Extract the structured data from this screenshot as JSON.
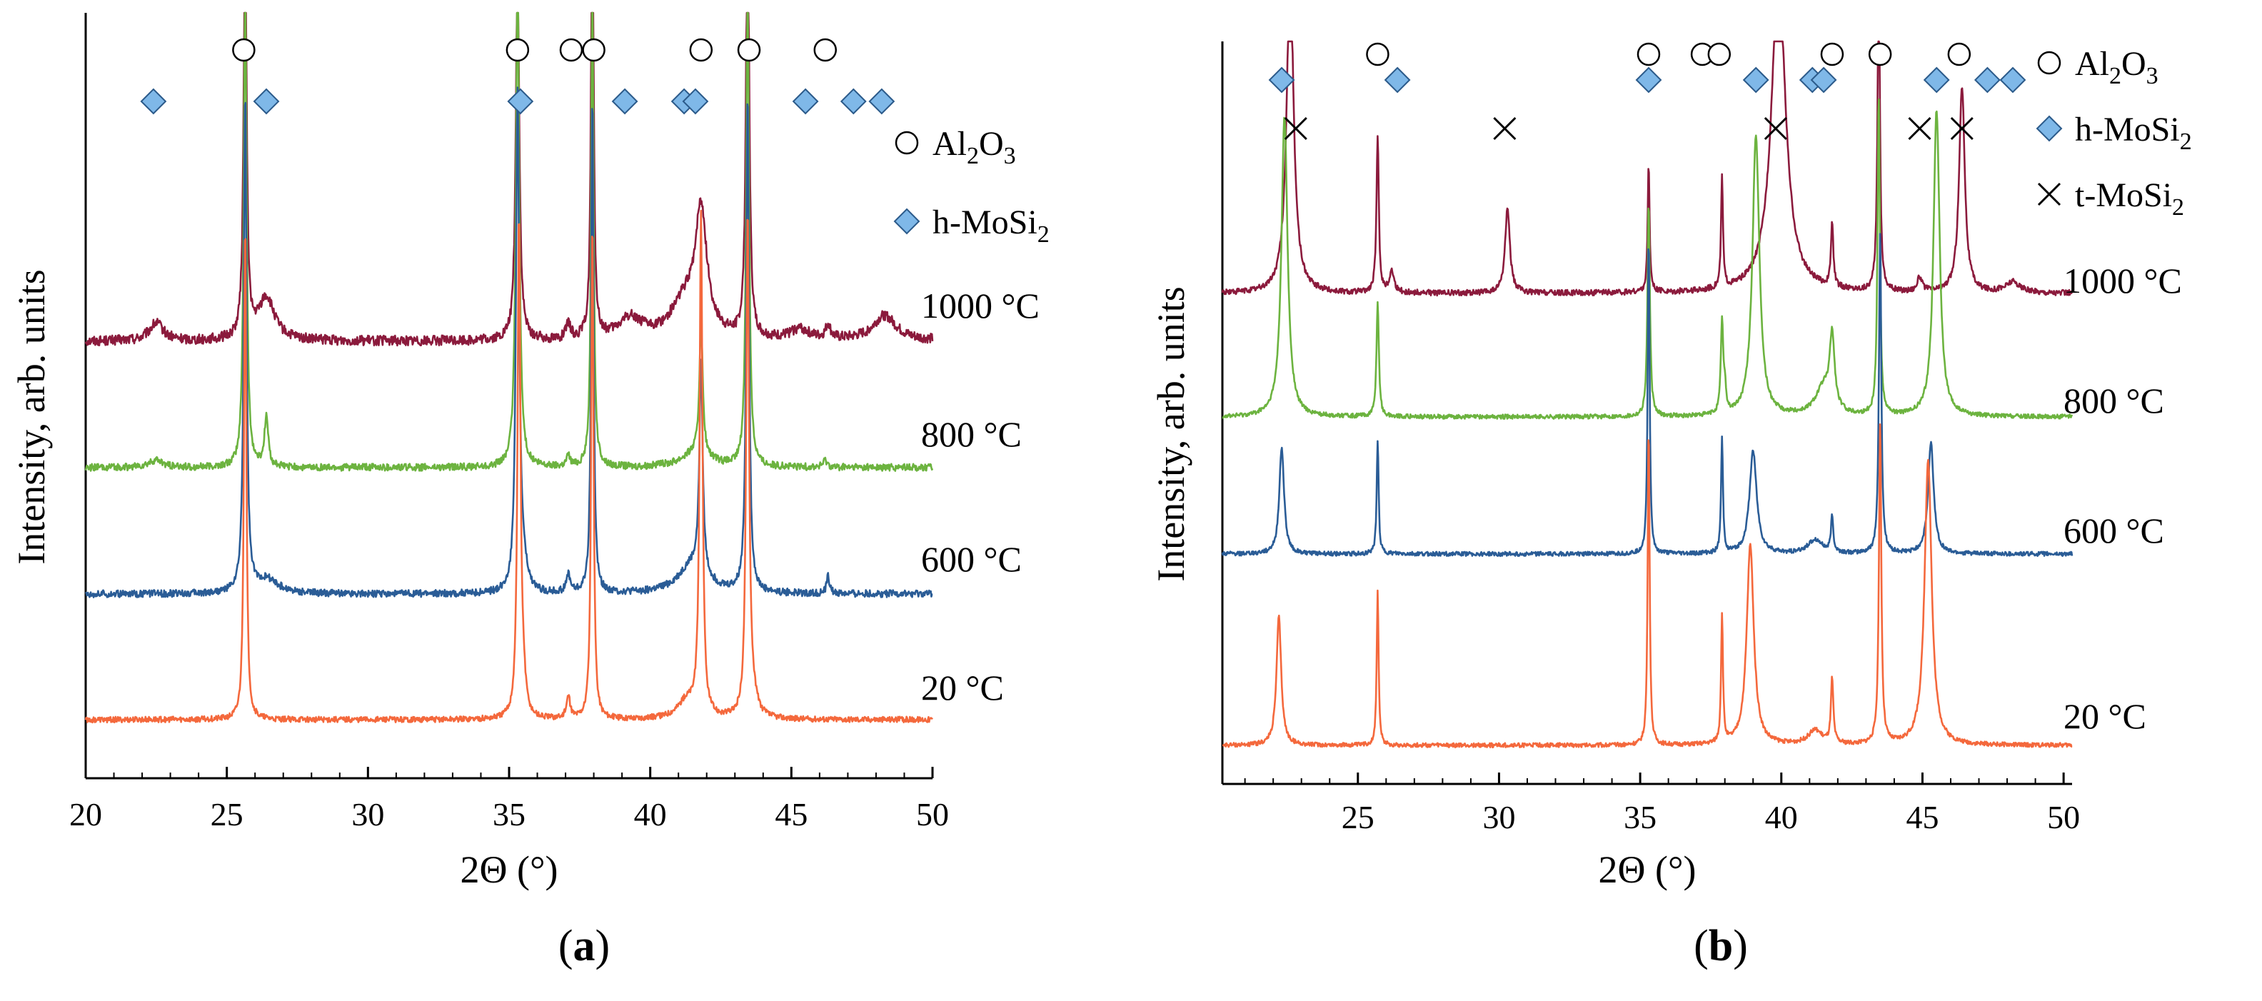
{
  "chart_data": [
    {
      "type": "line",
      "panel_label": "a",
      "xlabel": "2Θ (°)",
      "ylabel": "Intensity, arb. units",
      "xlim": [
        20,
        50
      ],
      "xticks": [
        20,
        25,
        30,
        35,
        40,
        45,
        50
      ],
      "ylim": [
        0,
        10
      ],
      "legend": [
        {
          "marker": "circle",
          "label": "Al",
          "sub1": "2",
          "mid": "O",
          "sub2": "3"
        },
        {
          "marker": "diamond",
          "label": "h-MoSi",
          "sub1": "2",
          "mid": "",
          "sub2": ""
        }
      ],
      "markers": {
        "circle": [
          25.6,
          35.3,
          37.2,
          38.0,
          41.8,
          43.5,
          46.2
        ],
        "diamond": [
          22.4,
          26.4,
          35.4,
          39.1,
          41.2,
          41.6,
          45.5,
          47.2,
          48.2
        ]
      },
      "series": [
        {
          "name": "1000 °C",
          "color": "#8b1a3c",
          "baseline": 6.22,
          "noise": 0.07,
          "peaks": [
            [
              25.65,
              6.0,
              0.06
            ],
            [
              35.3,
              5.5,
              0.07
            ],
            [
              37.95,
              7.0,
              0.05
            ],
            [
              41.8,
              1.7,
              0.25
            ],
            [
              43.45,
              7.0,
              0.06
            ],
            [
              26.4,
              0.6,
              0.35
            ],
            [
              22.5,
              0.25,
              0.3
            ],
            [
              37.1,
              0.2,
              0.1
            ],
            [
              39.3,
              0.3,
              0.5
            ],
            [
              45.3,
              0.15,
              0.4
            ],
            [
              46.3,
              0.2,
              0.1
            ],
            [
              48.3,
              0.35,
              0.5
            ],
            [
              41.2,
              0.5,
              0.6
            ]
          ]
        },
        {
          "name": "800 °C",
          "color": "#6cb33f",
          "baseline": 4.42,
          "noise": 0.05,
          "peaks": [
            [
              25.65,
              7.0,
              0.06
            ],
            [
              35.3,
              7.0,
              0.07
            ],
            [
              37.95,
              7.0,
              0.05
            ],
            [
              41.8,
              1.85,
              0.07
            ],
            [
              43.45,
              7.0,
              0.06
            ],
            [
              26.4,
              0.7,
              0.08
            ],
            [
              22.5,
              0.1,
              0.3
            ],
            [
              37.1,
              0.15,
              0.08
            ],
            [
              41.6,
              0.2,
              0.6
            ],
            [
              46.2,
              0.1,
              0.1
            ]
          ]
        },
        {
          "name": "600 °C",
          "color": "#2a5c96",
          "baseline": 2.72,
          "noise": 0.05,
          "peaks": [
            [
              25.65,
              7.0,
              0.06
            ],
            [
              35.3,
              7.0,
              0.07
            ],
            [
              37.95,
              7.0,
              0.05
            ],
            [
              41.8,
              2.95,
              0.07
            ],
            [
              43.45,
              7.0,
              0.06
            ],
            [
              26.4,
              0.2,
              0.5
            ],
            [
              35.5,
              0.3,
              0.15
            ],
            [
              37.1,
              0.25,
              0.08
            ],
            [
              41.5,
              0.4,
              0.6
            ],
            [
              46.3,
              0.25,
              0.06
            ]
          ]
        },
        {
          "name": "20 °C",
          "color": "#f4683c",
          "baseline": 0.95,
          "noise": 0.04,
          "peaks": [
            [
              25.65,
              7.0,
              0.05
            ],
            [
              35.35,
              7.0,
              0.06
            ],
            [
              37.95,
              7.0,
              0.05
            ],
            [
              41.8,
              7.0,
              0.06
            ],
            [
              43.45,
              7.0,
              0.06
            ],
            [
              35.5,
              0.4,
              0.1
            ],
            [
              37.1,
              0.3,
              0.08
            ],
            [
              41.3,
              0.25,
              0.4
            ],
            [
              43.6,
              0.3,
              0.2
            ]
          ]
        }
      ]
    },
    {
      "type": "line",
      "panel_label": "b",
      "xlabel": "2Θ (°)",
      "ylabel": "Intensity, arb. units",
      "xlim": [
        20.2,
        50.3
      ],
      "xticks": [
        25,
        30,
        35,
        40,
        45,
        50
      ],
      "ylim": [
        0,
        10
      ],
      "legend": [
        {
          "marker": "circle",
          "label": "Al",
          "sub1": "2",
          "mid": "O",
          "sub2": "3"
        },
        {
          "marker": "diamond",
          "label": "h-MoSi",
          "sub1": "2",
          "mid": "",
          "sub2": ""
        },
        {
          "marker": "cross",
          "label": "t-MoSi",
          "sub1": "2",
          "mid": "",
          "sub2": ""
        }
      ],
      "markers": {
        "circle": [
          25.7,
          35.3,
          37.2,
          37.8,
          41.8,
          43.5,
          46.3
        ],
        "diamond": [
          22.3,
          26.4,
          35.3,
          39.1,
          41.1,
          41.5,
          45.5,
          47.3,
          48.2
        ],
        "cross": [
          22.8,
          30.2,
          39.8,
          44.9,
          46.4
        ]
      },
      "series": [
        {
          "name": "1000 °C",
          "color": "#8b1a3c",
          "baseline": 6.7,
          "noise": 0.04,
          "peaks": [
            [
              22.6,
              4.5,
              0.15
            ],
            [
              25.7,
              2.15,
              0.05
            ],
            [
              30.3,
              1.2,
              0.1
            ],
            [
              35.3,
              1.8,
              0.04
            ],
            [
              37.9,
              1.55,
              0.04
            ],
            [
              39.9,
              4.5,
              0.3
            ],
            [
              41.8,
              0.9,
              0.05
            ],
            [
              43.45,
              4.5,
              0.05
            ],
            [
              46.4,
              2.9,
              0.12
            ],
            [
              26.2,
              0.3,
              0.1
            ],
            [
              44.9,
              0.2,
              0.1
            ],
            [
              48.2,
              0.15,
              0.3
            ]
          ]
        },
        {
          "name": "800 °C",
          "color": "#6cb33f",
          "baseline": 4.95,
          "noise": 0.03,
          "peaks": [
            [
              22.4,
              4.2,
              0.13
            ],
            [
              25.7,
              1.6,
              0.05
            ],
            [
              35.3,
              3.0,
              0.05
            ],
            [
              37.9,
              1.3,
              0.05
            ],
            [
              39.1,
              3.9,
              0.15
            ],
            [
              41.8,
              1.0,
              0.1
            ],
            [
              43.45,
              4.5,
              0.05
            ],
            [
              45.5,
              4.3,
              0.13
            ],
            [
              38.0,
              0.3,
              0.05
            ],
            [
              41.5,
              0.4,
              0.35
            ]
          ]
        },
        {
          "name": "600 °C",
          "color": "#2a5c96",
          "baseline": 3.0,
          "noise": 0.03,
          "peaks": [
            [
              22.3,
              1.5,
              0.1
            ],
            [
              25.7,
              1.6,
              0.04
            ],
            [
              35.3,
              4.5,
              0.04
            ],
            [
              37.9,
              1.6,
              0.04
            ],
            [
              39.0,
              1.45,
              0.15
            ],
            [
              41.8,
              0.5,
              0.05
            ],
            [
              43.5,
              4.5,
              0.05
            ],
            [
              45.3,
              1.55,
              0.12
            ],
            [
              41.2,
              0.2,
              0.3
            ]
          ]
        },
        {
          "name": "20 °C",
          "color": "#f4683c",
          "baseline": 0.12,
          "noise": 0.03,
          "peaks": [
            [
              22.2,
              1.8,
              0.1
            ],
            [
              25.7,
              2.15,
              0.04
            ],
            [
              35.3,
              4.5,
              0.04
            ],
            [
              37.9,
              1.8,
              0.04
            ],
            [
              38.9,
              2.8,
              0.15
            ],
            [
              41.8,
              0.9,
              0.05
            ],
            [
              43.5,
              4.5,
              0.05
            ],
            [
              45.2,
              4.0,
              0.15
            ],
            [
              41.2,
              0.2,
              0.3
            ]
          ]
        }
      ]
    }
  ]
}
